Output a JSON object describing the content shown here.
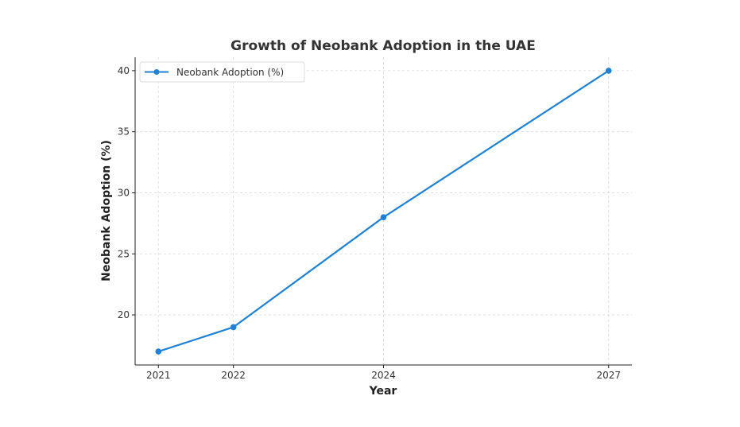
{
  "chart_data": {
    "type": "line",
    "title": "Growth of Neobank Adoption in the UAE",
    "xlabel": "Year",
    "ylabel": "Neobank Adoption (%)",
    "x": [
      2021,
      2022,
      2024,
      2027
    ],
    "series": [
      {
        "name": "Neobank Adoption (%)",
        "values": [
          17,
          19,
          28,
          40
        ],
        "color": "#1f82d4",
        "marker": "circle"
      }
    ],
    "xticks": [
      2021,
      2022,
      2024,
      2027
    ],
    "xtick_labels": [
      "2021",
      "2022",
      "2024",
      "2027"
    ],
    "yticks": [
      20,
      25,
      30,
      35,
      40
    ],
    "ytick_labels": [
      "20",
      "25",
      "30",
      "35",
      "40"
    ],
    "xlim": [
      2020.69,
      2027.31
    ],
    "ylim": [
      15.9,
      41.1
    ],
    "grid": true,
    "legend": {
      "position": "top-left",
      "entries": [
        "Neobank Adoption (%)"
      ]
    }
  }
}
